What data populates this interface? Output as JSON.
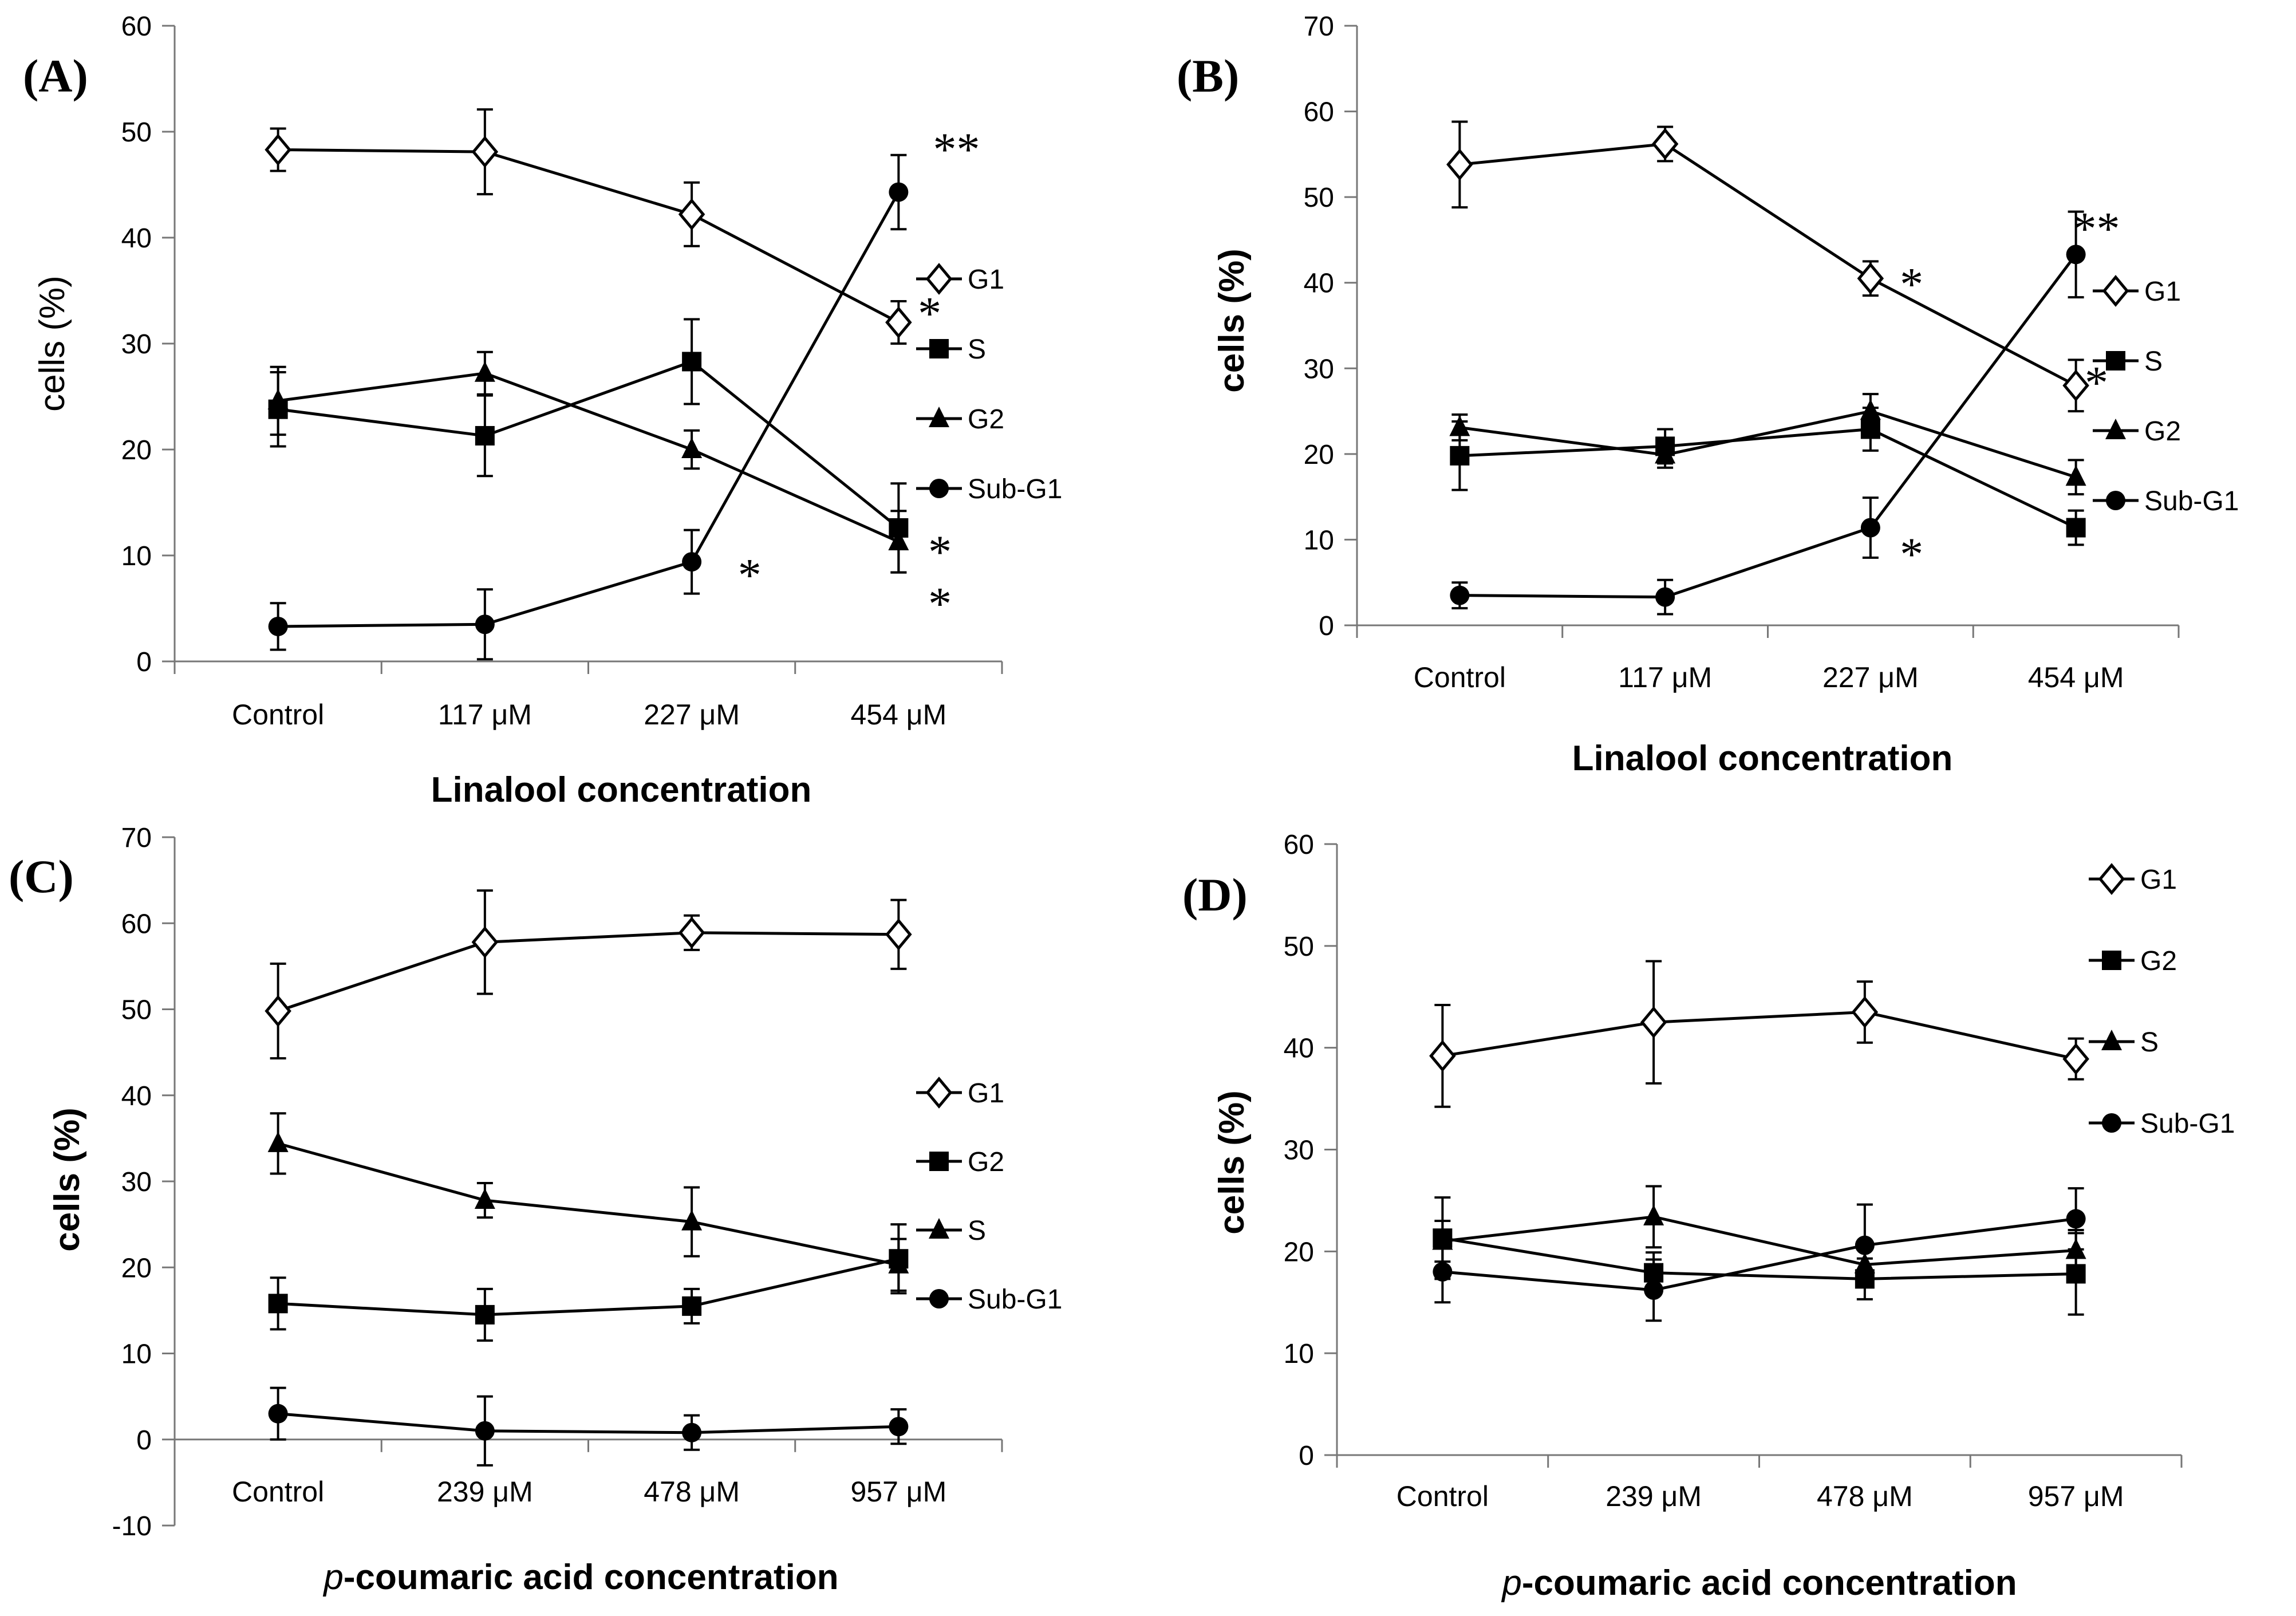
{
  "chart_data": [
    {
      "type": "line",
      "panel": "(A)",
      "categories": [
        "Control",
        "117 μM",
        "227 μM",
        "454 μM"
      ],
      "xlabel": "Linalool concentration",
      "xlabel_prefix": "",
      "ylabel": "cells (%)",
      "ylabel_bold": false,
      "ylim": [
        0,
        60
      ],
      "yticks": [
        0,
        10,
        20,
        30,
        40,
        50,
        60
      ],
      "legend_position": "right",
      "series": [
        {
          "name": "G1",
          "marker": "diamond",
          "values": [
            48.3,
            48.1,
            42.2,
            32.0
          ],
          "errors": [
            2.0,
            4.0,
            3.0,
            2.0
          ]
        },
        {
          "name": "S",
          "marker": "square",
          "values": [
            23.8,
            21.3,
            28.3,
            12.6
          ],
          "errors": [
            3.5,
            3.8,
            4.0,
            4.2
          ]
        },
        {
          "name": "G2",
          "marker": "triangle",
          "values": [
            24.6,
            27.2,
            20.0,
            11.3
          ],
          "errors": [
            3.2,
            2.0,
            1.8,
            2.9
          ]
        },
        {
          "name": "Sub-G1",
          "marker": "circle",
          "values": [
            3.3,
            3.5,
            9.4,
            44.3
          ],
          "errors": [
            2.2,
            3.3,
            3.0,
            3.5
          ]
        }
      ],
      "annotations": [
        {
          "text": "**",
          "category": 3,
          "y": 48.5,
          "dx": 0.28
        },
        {
          "text": "*",
          "category": 3,
          "y": 33.0,
          "dx": 0.15
        },
        {
          "text": "*",
          "category": 2,
          "y": 8.3,
          "dx": 0.28
        },
        {
          "text": "*",
          "category": 3,
          "y": 10.5,
          "dx": 0.2
        },
        {
          "text": "*",
          "category": 3,
          "y": 5.6,
          "dx": 0.2
        }
      ]
    },
    {
      "type": "line",
      "panel": "(B)",
      "categories": [
        "Control",
        "117 μM",
        "227 μM",
        "454 μM"
      ],
      "xlabel": "Linalool concentration",
      "xlabel_prefix": "",
      "ylabel": "cells (%)",
      "ylabel_bold": true,
      "ylim": [
        0,
        70
      ],
      "yticks": [
        0,
        10,
        20,
        30,
        40,
        50,
        60,
        70
      ],
      "legend_position": "right",
      "series": [
        {
          "name": "G1",
          "marker": "diamond",
          "values": [
            53.8,
            56.2,
            40.5,
            28.0
          ],
          "errors": [
            5.0,
            2.0,
            2.0,
            3.0
          ]
        },
        {
          "name": "S",
          "marker": "square",
          "values": [
            19.8,
            20.9,
            22.9,
            11.4
          ],
          "errors": [
            4.0,
            2.0,
            2.5,
            2.0
          ]
        },
        {
          "name": "G2",
          "marker": "triangle",
          "values": [
            23.1,
            19.9,
            25.0,
            17.3
          ],
          "errors": [
            1.5,
            1.5,
            2.0,
            2.0
          ]
        },
        {
          "name": "Sub-G1",
          "marker": "circle",
          "values": [
            3.5,
            3.3,
            11.4,
            43.3
          ],
          "errors": [
            1.5,
            2.0,
            3.5,
            5.0
          ]
        }
      ],
      "annotations": [
        {
          "text": "**",
          "category": 3,
          "y": 46.5,
          "dx": 0.1
        },
        {
          "text": "*",
          "category": 2,
          "y": 40.0,
          "dx": 0.2
        },
        {
          "text": "*",
          "category": 3,
          "y": 28.5,
          "dx": 0.1
        },
        {
          "text": "*",
          "category": 2,
          "y": 8.5,
          "dx": 0.2
        }
      ]
    },
    {
      "type": "line",
      "panel": "(C)",
      "categories": [
        "Control",
        "239 μM",
        "478 μM",
        "957 μM"
      ],
      "xlabel": "-coumaric acid concentration",
      "xlabel_prefix": "p",
      "ylabel": "cells (%)",
      "ylabel_bold": true,
      "ylim": [
        -10,
        70
      ],
      "yticks": [
        -10,
        0,
        10,
        20,
        30,
        40,
        50,
        60,
        70
      ],
      "legend_position": "right",
      "series": [
        {
          "name": "G1",
          "marker": "diamond",
          "values": [
            49.8,
            57.8,
            58.9,
            58.7
          ],
          "errors": [
            5.5,
            6.0,
            2.0,
            4.0
          ]
        },
        {
          "name": "G2",
          "marker": "square",
          "values": [
            15.8,
            14.5,
            15.5,
            21.0
          ],
          "errors": [
            3.0,
            3.0,
            2.0,
            4.0
          ]
        },
        {
          "name": "S",
          "marker": "triangle",
          "values": [
            34.4,
            27.8,
            25.3,
            20.3
          ],
          "errors": [
            3.5,
            2.0,
            4.0,
            3.0
          ]
        },
        {
          "name": "Sub-G1",
          "marker": "circle",
          "values": [
            3.0,
            1.0,
            0.8,
            1.5
          ],
          "errors": [
            3.0,
            4.0,
            2.0,
            2.0
          ]
        }
      ],
      "annotations": []
    },
    {
      "type": "line",
      "panel": "(D)",
      "categories": [
        "Control",
        "239 μM",
        "478 μM",
        "957 μM"
      ],
      "xlabel": "-coumaric acid concentration",
      "xlabel_prefix": "p",
      "ylabel": "cells (%)",
      "ylabel_bold": true,
      "ylim": [
        0,
        60
      ],
      "yticks": [
        0,
        10,
        20,
        30,
        40,
        50,
        60
      ],
      "legend_position": "top-right",
      "series": [
        {
          "name": "G1",
          "marker": "diamond",
          "values": [
            39.2,
            42.5,
            43.5,
            38.9
          ],
          "errors": [
            5.0,
            6.0,
            3.0,
            2.0
          ]
        },
        {
          "name": "G2",
          "marker": "square",
          "values": [
            21.3,
            17.9,
            17.3,
            17.8
          ],
          "errors": [
            4.0,
            2.0,
            2.0,
            4.0
          ]
        },
        {
          "name": "S",
          "marker": "triangle",
          "values": [
            21.0,
            23.4,
            18.7,
            20.1
          ],
          "errors": [
            2.0,
            3.0,
            2.0,
            2.0
          ]
        },
        {
          "name": "Sub-G1",
          "marker": "circle",
          "values": [
            18.0,
            16.2,
            20.6,
            23.2
          ],
          "errors": [
            3.0,
            3.0,
            4.0,
            3.0
          ]
        }
      ],
      "annotations": []
    }
  ]
}
